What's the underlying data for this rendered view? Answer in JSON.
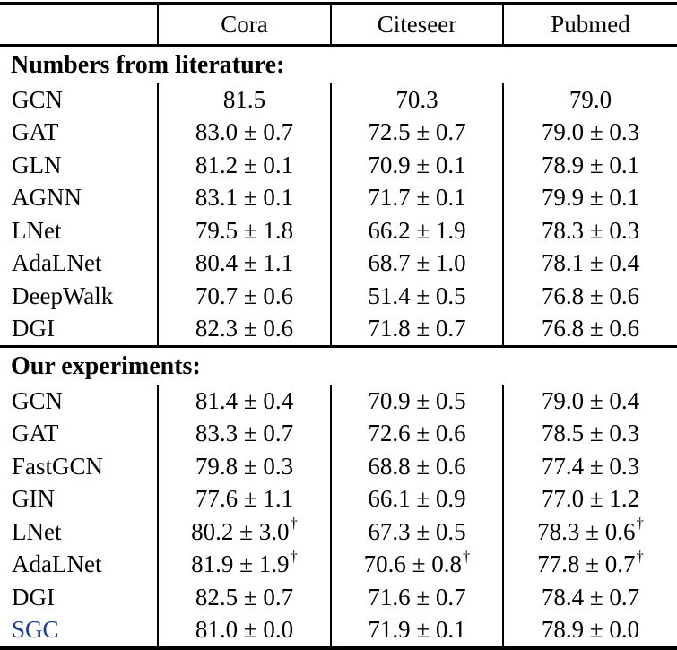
{
  "table": {
    "columns": [
      "",
      "Cora",
      "Citeseer",
      "Pubmed"
    ],
    "sections": [
      {
        "title": "Numbers from literature:",
        "rows": [
          [
            "GCN",
            "81.5",
            "70.3",
            "79.0"
          ],
          [
            "GAT",
            "83.0 ± 0.7",
            "72.5 ± 0.7",
            "79.0 ± 0.3"
          ],
          [
            "GLN",
            "81.2 ± 0.1",
            "70.9 ± 0.1",
            "78.9 ± 0.1"
          ],
          [
            "AGNN",
            "83.1 ± 0.1",
            "71.7 ± 0.1",
            "79.9 ± 0.1"
          ],
          [
            "LNet",
            "79.5 ± 1.8",
            "66.2 ± 1.9",
            "78.3 ± 0.3"
          ],
          [
            "AdaLNet",
            "80.4 ± 1.1",
            "68.7 ± 1.0",
            "78.1 ± 0.4"
          ],
          [
            "DeepWalk",
            "70.7 ± 0.6",
            "51.4 ± 0.5",
            "76.8 ± 0.6"
          ],
          [
            "DGI",
            "82.3 ± 0.6",
            "71.8 ± 0.7",
            "76.8 ± 0.6"
          ]
        ]
      },
      {
        "title": "Our experiments:",
        "rows": [
          [
            "GCN",
            "81.4 ± 0.4",
            "70.9 ± 0.5",
            "79.0 ± 0.4"
          ],
          [
            "GAT",
            "83.3 ± 0.7",
            "72.6 ± 0.6",
            "78.5 ± 0.3"
          ],
          [
            "FastGCN",
            "79.8 ± 0.3",
            "68.8 ± 0.6",
            "77.4 ± 0.3"
          ],
          [
            "GIN",
            "77.6 ± 1.1",
            "66.1 ± 0.9",
            "77.0 ± 1.2"
          ],
          [
            "LNet",
            "80.2 ± 3.0^†",
            "67.3 ± 0.5",
            "78.3 ± 0.6^†"
          ],
          [
            "AdaLNet",
            "81.9 ± 1.9^†",
            "70.6 ± 0.8^†",
            "77.8 ± 0.7^†"
          ],
          [
            "DGI",
            "82.5 ± 0.7",
            "71.6 ± 0.7",
            "78.4 ± 0.7"
          ],
          [
            "SGC",
            "81.0 ± 0.0",
            "71.9 ± 0.1",
            "78.9 ± 0.0"
          ]
        ]
      }
    ],
    "highlight_row_label": "SGC",
    "colors": {
      "highlight": "#1b3b9b",
      "text": "#000000",
      "rule": "#000000"
    }
  }
}
